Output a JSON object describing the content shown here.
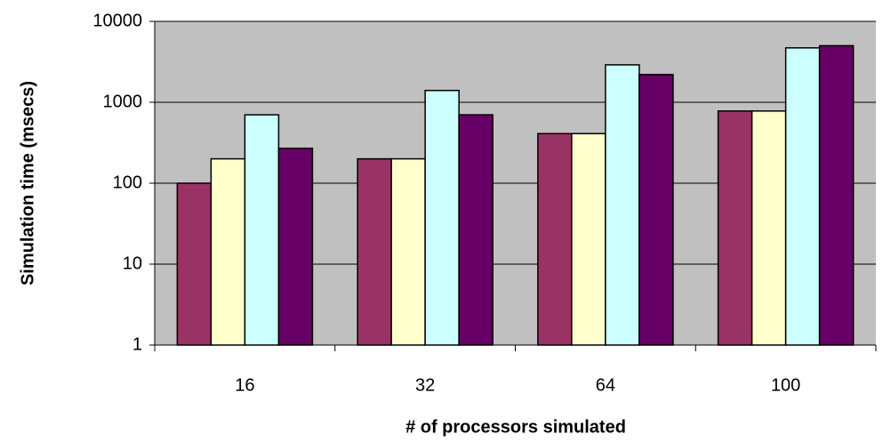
{
  "chart_data": {
    "type": "bar",
    "y_label": "Simulation time (msecs)",
    "x_label": "# of processors simulated",
    "categories": [
      "16",
      "32",
      "64",
      "100"
    ],
    "series": [
      {
        "color": "#993366",
        "values": [
          100,
          200,
          410,
          780
        ]
      },
      {
        "color": "#FFFFCC",
        "values": [
          200,
          200,
          410,
          780
        ]
      },
      {
        "color": "#CCFFFF",
        "values": [
          700,
          1400,
          2900,
          4700
        ]
      },
      {
        "color": "#660066",
        "values": [
          270,
          700,
          2200,
          5000
        ]
      }
    ],
    "yscale": "log",
    "ylim": [
      1,
      10000
    ],
    "yticks": [
      1,
      10,
      100,
      1000,
      10000
    ],
    "grid": true,
    "plot_background": "#C0C0C0"
  }
}
